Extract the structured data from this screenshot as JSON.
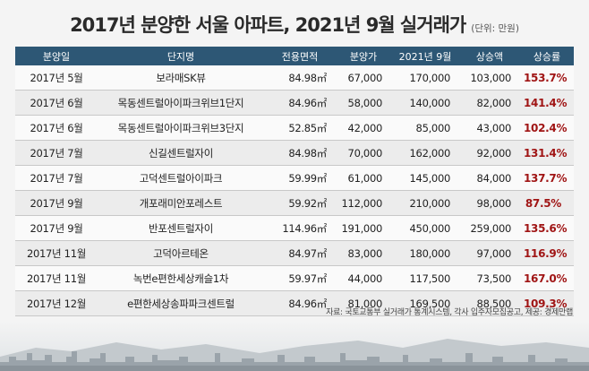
{
  "title": "2017년 분양한 서울 아파트, 2021년 9월 실거래가",
  "unit": "(단위: 만원)",
  "columns": [
    "분양일",
    "단지명",
    "전용면적",
    "분양가",
    "2021년 9월",
    "상승액",
    "상승률"
  ],
  "rows": [
    [
      "2017년 5월",
      "보라매SK뷰",
      "84.98㎡",
      "67,000",
      "170,000",
      "103,000",
      "153.7%"
    ],
    [
      "2017년 6월",
      "목동센트럴아이파크위브1단지",
      "84.96㎡",
      "58,000",
      "140,000",
      "82,000",
      "141.4%"
    ],
    [
      "2017년 6월",
      "목동센트럴아이파크위브3단지",
      "52.85㎡",
      "42,000",
      "85,000",
      "43,000",
      "102.4%"
    ],
    [
      "2017년 7월",
      "신길센트럴자이",
      "84.98㎡",
      "70,000",
      "162,000",
      "92,000",
      "131.4%"
    ],
    [
      "2017년 7월",
      "고덕센트럴아이파크",
      "59.99㎡",
      "61,000",
      "145,000",
      "84,000",
      "137.7%"
    ],
    [
      "2017년 9월",
      "개포래미안포레스트",
      "59.92㎡",
      "112,000",
      "210,000",
      "98,000",
      "87.5%"
    ],
    [
      "2017년 9월",
      "반포센트럴자이",
      "114.96㎡",
      "191,000",
      "450,000",
      "259,000",
      "135.6%"
    ],
    [
      "2017년 11월",
      "고덕아르테온",
      "84.97㎡",
      "83,000",
      "180,000",
      "97,000",
      "116.9%"
    ],
    [
      "2017년 11월",
      "녹번e편한세상캐슬1차",
      "59.97㎡",
      "44,000",
      "117,500",
      "73,500",
      "167.0%"
    ],
    [
      "2017년 12월",
      "e편한세상송파파크센트럴",
      "84.96㎡",
      "81,000",
      "169,500",
      "88,500",
      "109.3%"
    ]
  ],
  "source": "자료: 국토교통부 실거래가 통계시스템, 각사 입주자모집공고, 제공: 경제만랩",
  "colors": {
    "header_bg": "#2d5775",
    "rate_text": "#a01515"
  }
}
